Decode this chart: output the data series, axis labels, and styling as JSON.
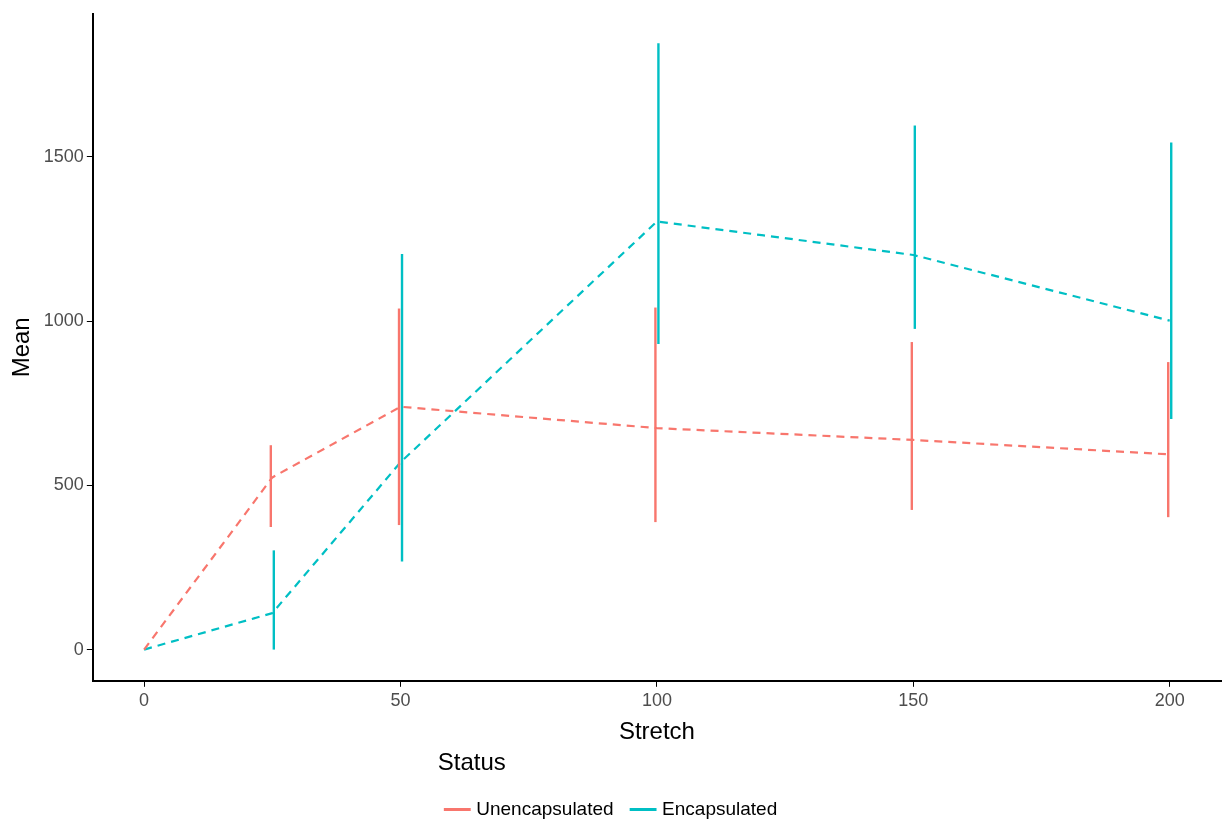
{
  "chart_data": {
    "type": "line",
    "xlabel": "Stretch",
    "ylabel": "Mean",
    "legend_title": "Status",
    "x": [
      0,
      25,
      50,
      100,
      150,
      200
    ],
    "series": [
      {
        "name": "Unencapsulated",
        "color": "#f8766d",
        "values": [
          0,
          524,
          739,
          674,
          638,
          594
        ],
        "errors": [
          null,
          [
            373,
            622
          ],
          [
            379,
            1038
          ],
          [
            388,
            1041
          ],
          [
            425,
            936
          ],
          [
            403,
            875
          ]
        ]
      },
      {
        "name": "Encapsulated",
        "color": "#00bfc4",
        "values": [
          0,
          111,
          570,
          1303,
          1201,
          1001
        ],
        "errors": [
          null,
          [
            0,
            302
          ],
          [
            268,
            1204
          ],
          [
            930,
            1845
          ],
          [
            976,
            1595
          ],
          [
            702,
            1543
          ]
        ]
      }
    ],
    "xlim": [
      -10,
      210
    ],
    "xticks": [
      0,
      50,
      100,
      150,
      200
    ],
    "ylim": [
      -95,
      1935
    ],
    "yticks": [
      0,
      500,
      1000,
      1500
    ],
    "grid": false,
    "legend": "bottom",
    "marker": "none",
    "line_style": "dashed"
  }
}
